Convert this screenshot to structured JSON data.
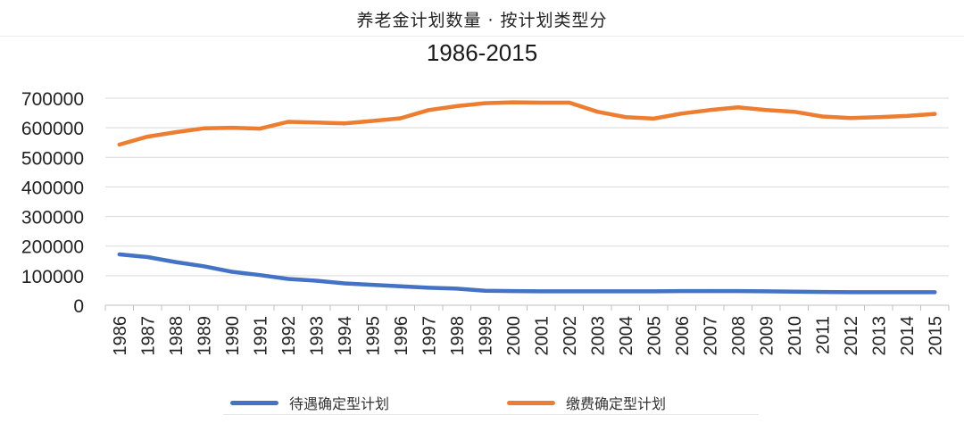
{
  "header": {
    "title": "养老金计划数量 · 按计划类型分"
  },
  "chart_data": {
    "type": "line",
    "title": "1986-2015",
    "xlabel": "",
    "ylabel": "",
    "ylim": [
      0,
      700000
    ],
    "yticks": [
      "0",
      "100000",
      "200000",
      "300000",
      "400000",
      "500000",
      "600000",
      "700000"
    ],
    "x": [
      "1986",
      "1987",
      "1988",
      "1989",
      "1990",
      "1991",
      "1992",
      "1993",
      "1994",
      "1995",
      "1996",
      "1997",
      "1998",
      "1999",
      "2000",
      "2001",
      "2002",
      "2003",
      "2004",
      "2005",
      "2006",
      "2007",
      "2008",
      "2009",
      "2010",
      "2011",
      "2012",
      "2013",
      "2014",
      "2015"
    ],
    "grid": true,
    "legend_position": "bottom",
    "series": [
      {
        "name": "待遇确定型计划",
        "color": "#4472C4",
        "values": [
          172000,
          163000,
          146000,
          132000,
          113000,
          102000,
          89000,
          83000,
          74000,
          69000,
          64000,
          59000,
          56000,
          49000,
          48000,
          47000,
          47000,
          47000,
          47000,
          47000,
          48000,
          48000,
          48000,
          47000,
          46000,
          45000,
          44000,
          44000,
          44000,
          44000
        ]
      },
      {
        "name": "缴费确定型计划",
        "color": "#ED7D31",
        "values": [
          543000,
          570000,
          585000,
          598000,
          600000,
          597000,
          620000,
          618000,
          615000,
          623000,
          632000,
          660000,
          673000,
          683000,
          686000,
          685000,
          685000,
          654000,
          636000,
          631000,
          648000,
          660000,
          669000,
          660000,
          654000,
          638000,
          633000,
          636000,
          640000,
          647000
        ]
      }
    ]
  }
}
